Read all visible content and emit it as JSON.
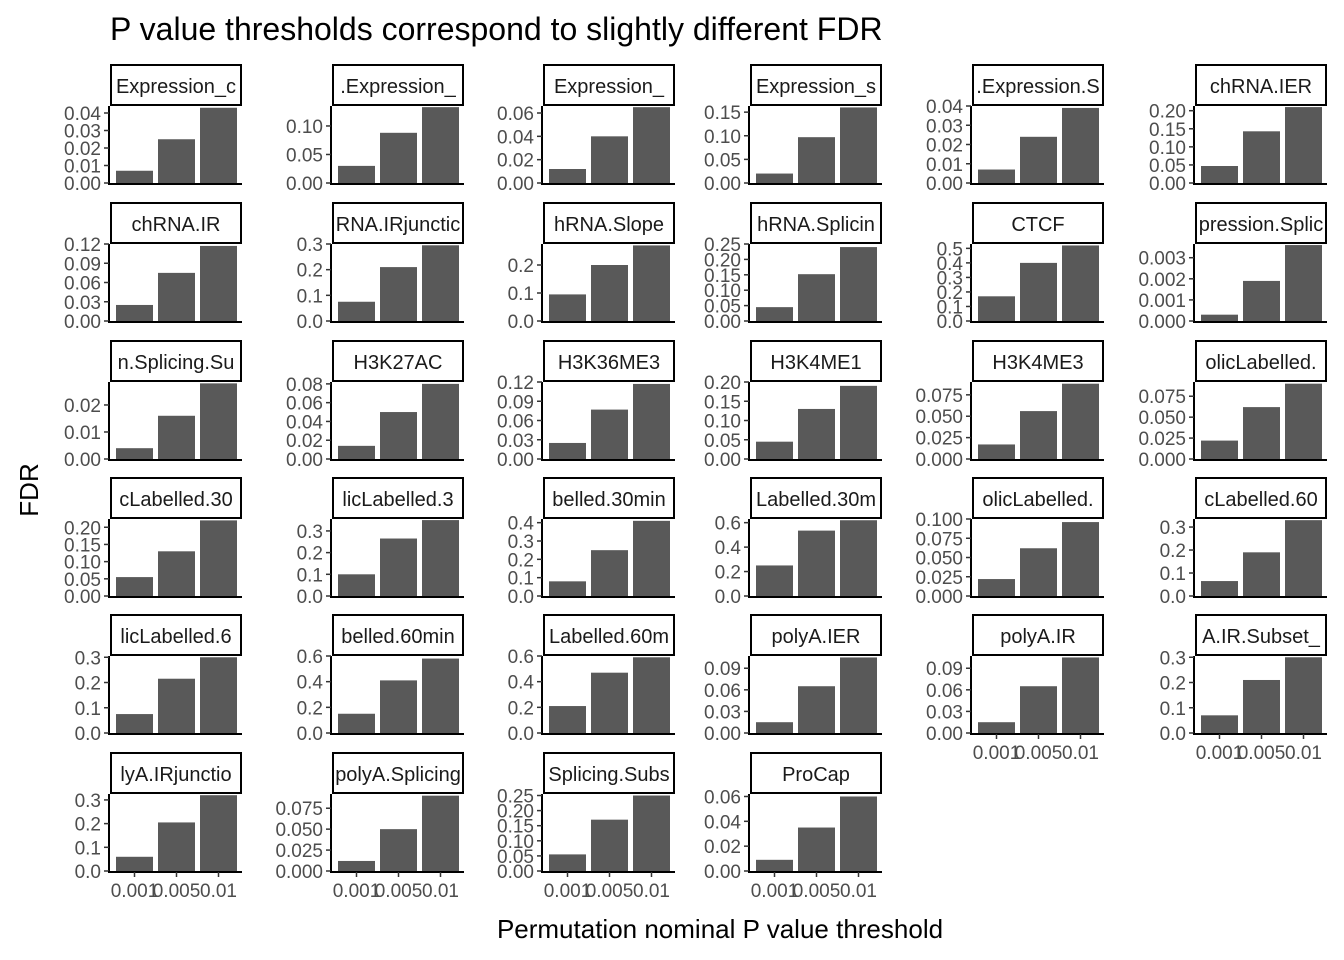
{
  "chart_data": {
    "type": "bar",
    "title": "P value thresholds correspond to slightly different FDR",
    "xlabel": "Permutation nominal P value threshold",
    "ylabel": "FDR",
    "categories": [
      "0.001",
      "0.005",
      "0.01"
    ],
    "bar_color": "#595959",
    "panels": [
      {
        "strip": "Expression_c",
        "values": [
          0.007,
          0.025,
          0.043
        ],
        "yticks": [
          "0.00",
          "0.01",
          "0.02",
          "0.03",
          "0.04"
        ],
        "ymax": 0.044
      },
      {
        "strip": ".Expression_",
        "values": [
          0.03,
          0.088,
          0.133
        ],
        "yticks": [
          "0.00",
          "0.05",
          "0.10"
        ],
        "ymax": 0.135
      },
      {
        "strip": "Expression_",
        "values": [
          0.012,
          0.04,
          0.065
        ],
        "yticks": [
          "0.00",
          "0.02",
          "0.04",
          "0.06"
        ],
        "ymax": 0.066
      },
      {
        "strip": "Expression_s",
        "values": [
          0.02,
          0.097,
          0.16
        ],
        "yticks": [
          "0.00",
          "0.05",
          "0.10",
          "0.15"
        ],
        "ymax": 0.163
      },
      {
        "strip": ".Expression.S",
        "values": [
          0.007,
          0.024,
          0.039
        ],
        "yticks": [
          "0.00",
          "0.01",
          "0.02",
          "0.03",
          "0.04"
        ],
        "ymax": 0.04
      },
      {
        "strip": "chRNA.IER",
        "values": [
          0.047,
          0.143,
          0.21
        ],
        "yticks": [
          "0.00",
          "0.05",
          "0.10",
          "0.15",
          "0.20"
        ],
        "ymax": 0.213
      },
      {
        "strip": "chRNA.IR",
        "values": [
          0.025,
          0.075,
          0.117
        ],
        "yticks": [
          "0.00",
          "0.03",
          "0.06",
          "0.09",
          "0.12"
        ],
        "ymax": 0.12
      },
      {
        "strip": "RNA.IRjunctic",
        "values": [
          0.075,
          0.21,
          0.295
        ],
        "yticks": [
          "0.0",
          "0.1",
          "0.2",
          "0.3"
        ],
        "ymax": 0.3
      },
      {
        "strip": "hRNA.Slope",
        "values": [
          0.095,
          0.2,
          0.27
        ],
        "yticks": [
          "0.0",
          "0.1",
          "0.2"
        ],
        "ymax": 0.275
      },
      {
        "strip": "hRNA.Splicin",
        "values": [
          0.045,
          0.152,
          0.24
        ],
        "yticks": [
          "0.00",
          "0.05",
          "0.10",
          "0.15",
          "0.20",
          "0.25"
        ],
        "ymax": 0.25
      },
      {
        "strip": "CTCF",
        "values": [
          0.17,
          0.4,
          0.52
        ],
        "yticks": [
          "0.0",
          "0.1",
          "0.2",
          "0.3",
          "0.4",
          "0.5"
        ],
        "ymax": 0.53
      },
      {
        "strip": "pression.Splic",
        "values": [
          0.0003,
          0.0019,
          0.0036
        ],
        "yticks": [
          "0.000",
          "0.001",
          "0.002",
          "0.003"
        ],
        "ymax": 0.00365
      },
      {
        "strip": "n.Splicing.Su",
        "values": [
          0.004,
          0.016,
          0.028
        ],
        "yticks": [
          "0.00",
          "0.01",
          "0.02"
        ],
        "ymax": 0.0285
      },
      {
        "strip": "H3K27AC",
        "values": [
          0.014,
          0.05,
          0.08
        ],
        "yticks": [
          "0.00",
          "0.02",
          "0.04",
          "0.06",
          "0.08"
        ],
        "ymax": 0.082
      },
      {
        "strip": "H3K36ME3",
        "values": [
          0.025,
          0.077,
          0.117
        ],
        "yticks": [
          "0.00",
          "0.03",
          "0.06",
          "0.09",
          "0.12"
        ],
        "ymax": 0.12
      },
      {
        "strip": "H3K4ME1",
        "values": [
          0.045,
          0.13,
          0.19
        ],
        "yticks": [
          "0.00",
          "0.05",
          "0.10",
          "0.15",
          "0.20"
        ],
        "ymax": 0.2
      },
      {
        "strip": "H3K4ME3",
        "values": [
          0.017,
          0.056,
          0.088
        ],
        "yticks": [
          "0.000",
          "0.025",
          "0.050",
          "0.075"
        ],
        "ymax": 0.09
      },
      {
        "strip": "olicLabelled.",
        "values": [
          0.022,
          0.062,
          0.09
        ],
        "yticks": [
          "0.000",
          "0.025",
          "0.050",
          "0.075"
        ],
        "ymax": 0.092
      },
      {
        "strip": "cLabelled.30",
        "values": [
          0.055,
          0.13,
          0.22
        ],
        "yticks": [
          "0.00",
          "0.05",
          "0.10",
          "0.15",
          "0.20"
        ],
        "ymax": 0.224
      },
      {
        "strip": "licLabelled.3",
        "values": [
          0.1,
          0.265,
          0.35
        ],
        "yticks": [
          "0.0",
          "0.1",
          "0.2",
          "0.3"
        ],
        "ymax": 0.355
      },
      {
        "strip": "belled.30min",
        "values": [
          0.08,
          0.25,
          0.41
        ],
        "yticks": [
          "0.0",
          "0.1",
          "0.2",
          "0.3",
          "0.4"
        ],
        "ymax": 0.42
      },
      {
        "strip": "Labelled.30m",
        "values": [
          0.25,
          0.535,
          0.62
        ],
        "yticks": [
          "0.0",
          "0.2",
          "0.4",
          "0.6"
        ],
        "ymax": 0.63
      },
      {
        "strip": "olicLabelled.",
        "values": [
          0.022,
          0.062,
          0.096
        ],
        "yticks": [
          "0.000",
          "0.025",
          "0.050",
          "0.075",
          "0.100"
        ],
        "ymax": 0.1
      },
      {
        "strip": "cLabelled.60",
        "values": [
          0.065,
          0.19,
          0.33
        ],
        "yticks": [
          "0.0",
          "0.1",
          "0.2",
          "0.3"
        ],
        "ymax": 0.335
      },
      {
        "strip": "licLabelled.6",
        "values": [
          0.075,
          0.215,
          0.3
        ],
        "yticks": [
          "0.0",
          "0.1",
          "0.2",
          "0.3"
        ],
        "ymax": 0.305
      },
      {
        "strip": "belled.60min",
        "values": [
          0.15,
          0.41,
          0.58
        ],
        "yticks": [
          "0.0",
          "0.2",
          "0.4",
          "0.6"
        ],
        "ymax": 0.6
      },
      {
        "strip": "Labelled.60m",
        "values": [
          0.21,
          0.47,
          0.59
        ],
        "yticks": [
          "0.0",
          "0.2",
          "0.4",
          "0.6"
        ],
        "ymax": 0.6
      },
      {
        "strip": "polyA.IER",
        "values": [
          0.015,
          0.065,
          0.105
        ],
        "yticks": [
          "0.00",
          "0.03",
          "0.06",
          "0.09"
        ],
        "ymax": 0.107
      },
      {
        "strip": "polyA.IR",
        "values": [
          0.015,
          0.065,
          0.105
        ],
        "yticks": [
          "0.00",
          "0.03",
          "0.06",
          "0.09"
        ],
        "ymax": 0.107
      },
      {
        "strip": "A.IR.Subset_",
        "values": [
          0.07,
          0.21,
          0.3
        ],
        "yticks": [
          "0.0",
          "0.1",
          "0.2",
          "0.3"
        ],
        "ymax": 0.305
      },
      {
        "strip": "lyA.IRjunctio",
        "values": [
          0.06,
          0.205,
          0.32
        ],
        "yticks": [
          "0.0",
          "0.1",
          "0.2",
          "0.3"
        ],
        "ymax": 0.325
      },
      {
        "strip": "polyA.Splicing",
        "values": [
          0.012,
          0.05,
          0.09
        ],
        "yticks": [
          "0.000",
          "0.025",
          "0.050",
          "0.075"
        ],
        "ymax": 0.092
      },
      {
        "strip": "Splicing.Subs",
        "values": [
          0.055,
          0.17,
          0.25
        ],
        "yticks": [
          "0.00",
          "0.05",
          "0.10",
          "0.15",
          "0.20",
          "0.25"
        ],
        "ymax": 0.255
      },
      {
        "strip": "ProCap",
        "values": [
          0.009,
          0.035,
          0.06
        ],
        "yticks": [
          "0.00",
          "0.02",
          "0.04",
          "0.06"
        ],
        "ymax": 0.062
      }
    ],
    "x_axis_panels": [
      28,
      29,
      30,
      31,
      32,
      33
    ],
    "grid": false,
    "legend": "none"
  }
}
